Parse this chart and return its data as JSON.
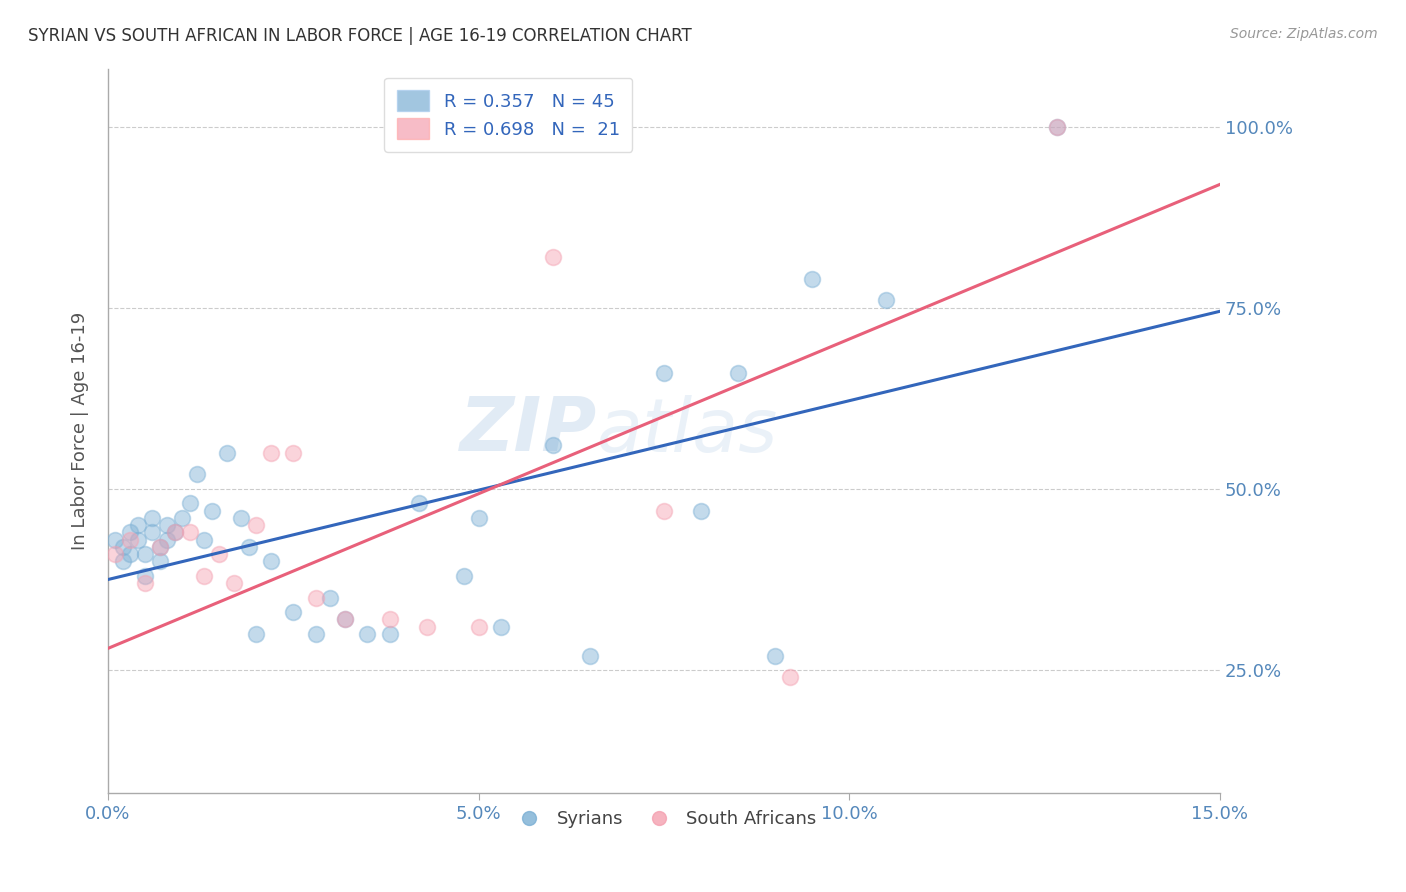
{
  "title": "SYRIAN VS SOUTH AFRICAN IN LABOR FORCE | AGE 16-19 CORRELATION CHART",
  "source": "Source: ZipAtlas.com",
  "ylabel": "In Labor Force | Age 16-19",
  "watermark": "ZIPatlas",
  "xlim": [
    0.0,
    0.15
  ],
  "ylim": [
    0.08,
    1.08
  ],
  "xticks": [
    0.0,
    0.05,
    0.1,
    0.15
  ],
  "xtick_labels": [
    "0.0%",
    "5.0%",
    "10.0%",
    "15.0%"
  ],
  "yticks": [
    0.25,
    0.5,
    0.75,
    1.0
  ],
  "ytick_labels": [
    "25.0%",
    "50.0%",
    "75.0%",
    "100.0%"
  ],
  "blue_R": 0.357,
  "blue_N": 45,
  "pink_R": 0.698,
  "pink_N": 21,
  "blue_color": "#7BAFD4",
  "pink_color": "#F4A0B0",
  "blue_line_color": "#3366BB",
  "pink_line_color": "#E8607A",
  "legend_blue_label": "R = 0.357   N = 45",
  "legend_pink_label": "R = 0.698   N =  21",
  "legend_syrians": "Syrians",
  "legend_south_africans": "South Africans",
  "blue_line_x0": 0.0,
  "blue_line_y0": 0.375,
  "blue_line_x1": 0.15,
  "blue_line_y1": 0.745,
  "pink_line_x0": 0.0,
  "pink_line_y0": 0.28,
  "pink_line_x1": 0.15,
  "pink_line_y1": 0.92,
  "blue_scatter_x": [
    0.001,
    0.002,
    0.002,
    0.003,
    0.003,
    0.004,
    0.004,
    0.005,
    0.005,
    0.006,
    0.006,
    0.007,
    0.007,
    0.008,
    0.008,
    0.009,
    0.01,
    0.011,
    0.012,
    0.013,
    0.014,
    0.016,
    0.018,
    0.019,
    0.02,
    0.022,
    0.025,
    0.028,
    0.03,
    0.032,
    0.035,
    0.038,
    0.042,
    0.048,
    0.05,
    0.053,
    0.06,
    0.065,
    0.075,
    0.08,
    0.085,
    0.09,
    0.095,
    0.105,
    0.128
  ],
  "blue_scatter_y": [
    0.43,
    0.42,
    0.4,
    0.44,
    0.41,
    0.43,
    0.45,
    0.41,
    0.38,
    0.44,
    0.46,
    0.42,
    0.4,
    0.45,
    0.43,
    0.44,
    0.46,
    0.48,
    0.52,
    0.43,
    0.47,
    0.55,
    0.46,
    0.42,
    0.3,
    0.4,
    0.33,
    0.3,
    0.35,
    0.32,
    0.3,
    0.3,
    0.48,
    0.38,
    0.46,
    0.31,
    0.56,
    0.27,
    0.66,
    0.47,
    0.66,
    0.27,
    0.79,
    0.76,
    1.0
  ],
  "pink_scatter_x": [
    0.001,
    0.003,
    0.005,
    0.007,
    0.009,
    0.011,
    0.013,
    0.015,
    0.017,
    0.02,
    0.022,
    0.025,
    0.028,
    0.032,
    0.038,
    0.043,
    0.05,
    0.06,
    0.075,
    0.092,
    0.128
  ],
  "pink_scatter_y": [
    0.41,
    0.43,
    0.37,
    0.42,
    0.44,
    0.44,
    0.38,
    0.41,
    0.37,
    0.45,
    0.55,
    0.55,
    0.35,
    0.32,
    0.32,
    0.31,
    0.31,
    0.82,
    0.47,
    0.24,
    1.0
  ],
  "background_color": "#FFFFFF",
  "grid_color": "#CCCCCC",
  "axis_color": "#AAAAAA",
  "title_color": "#333333",
  "tick_label_color": "#5588BB",
  "ylabel_color": "#555555",
  "watermark_color": "#C5D8EC",
  "watermark_alpha": 0.35,
  "dot_size": 130,
  "dot_alpha": 0.45
}
